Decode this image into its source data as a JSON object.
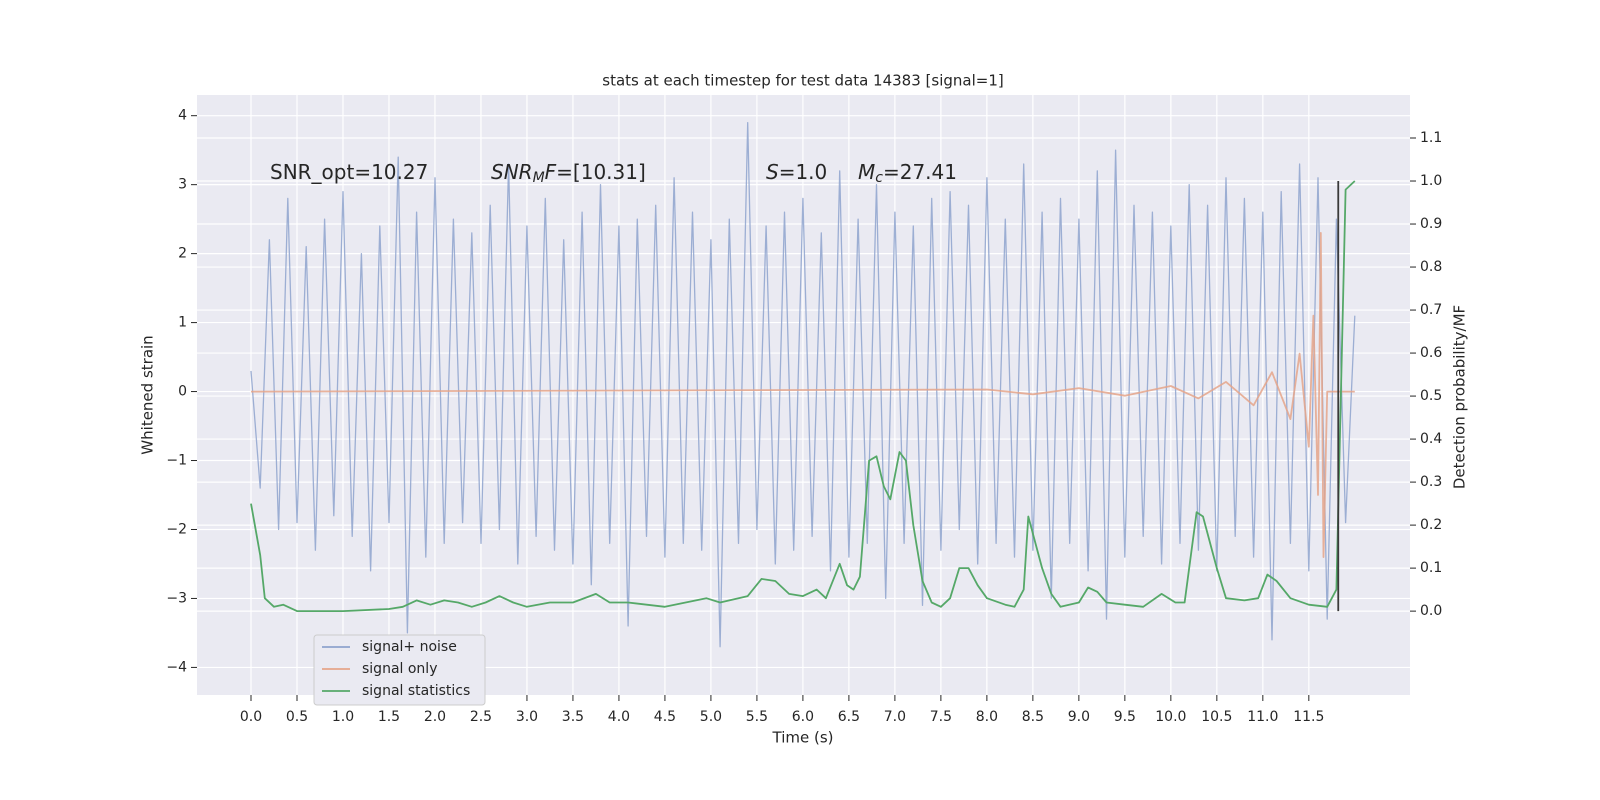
{
  "chart_data": {
    "type": "line",
    "title": "stats at each timestep for test data 14383 [signal=1]",
    "xlabel": "Time (s)",
    "ylabel": "Whitened strain",
    "y2label": "Detection probability/MF",
    "xlim": [
      -0.587,
      12.6
    ],
    "ylim": [
      -4.4,
      4.3
    ],
    "y2lim": [
      -0.195,
      1.2
    ],
    "xticks": [
      {
        "value": 0,
        "label": "0.0"
      },
      0.5,
      {
        "value": 1,
        "label": "1.0"
      },
      1.5,
      {
        "value": 2,
        "label": "2.0"
      },
      2.5,
      {
        "value": 3,
        "label": "3.0"
      },
      3.5,
      {
        "value": 4,
        "label": "4.0"
      },
      4.5,
      {
        "value": 5,
        "label": "5.0"
      },
      5.5,
      {
        "value": 6,
        "label": "6.0"
      },
      6.5,
      {
        "value": 7,
        "label": "7.0"
      },
      7.5,
      {
        "value": 8,
        "label": "8.0"
      },
      8.5,
      {
        "value": 9,
        "label": "9.0"
      },
      9.5,
      {
        "value": 10,
        "label": "10.0"
      },
      10.5,
      {
        "value": 11,
        "label": "11.0"
      },
      11.5
    ],
    "yticks": [
      {
        "value": -4,
        "label": "−4"
      },
      {
        "value": -3,
        "label": "−3"
      },
      {
        "value": -2,
        "label": "−2"
      },
      {
        "value": -1,
        "label": "−1"
      },
      0,
      1,
      2,
      3,
      4
    ],
    "y2ticks": [
      {
        "value": 0,
        "label": "0.0"
      },
      0.1,
      0.2,
      0.3,
      0.4,
      0.5,
      0.6,
      0.7,
      0.8,
      0.9,
      {
        "value": 1,
        "label": "1.0"
      },
      1.1
    ],
    "grid": true,
    "legend": "lower left",
    "annotations": [
      {
        "segments": [
          {
            "text": "SNR_opt=10.27",
            "style": "normal"
          }
        ]
      },
      {
        "segments": [
          {
            "text": "SNR",
            "style": "italic"
          },
          {
            "text": "M",
            "style": "italic-sub"
          },
          {
            "text": "F",
            "style": "italic"
          },
          {
            "text": "=[10.31]",
            "style": "normal"
          }
        ]
      },
      {
        "segments": [
          {
            "text": "S",
            "style": "italic"
          },
          {
            "text": "=1.0",
            "style": "normal"
          }
        ]
      },
      {
        "segments": [
          {
            "text": "M",
            "style": "italic"
          },
          {
            "text": "c",
            "style": "italic-sub"
          },
          {
            "text": "=27.41",
            "style": "normal"
          }
        ]
      }
    ],
    "vlines": [
      {
        "x": 11.82,
        "ymin": 0,
        "ymax": 1,
        "axis": "y2",
        "color": "#3a3a3a"
      }
    ],
    "series": [
      {
        "name": "signal+ noise",
        "color": "#8ea3ce",
        "x": [
          0,
          0.1,
          0.2,
          0.3,
          0.4,
          0.5,
          0.6,
          0.7,
          0.8,
          0.9,
          1.0,
          1.1,
          1.2,
          1.3,
          1.4,
          1.5,
          1.6,
          1.7,
          1.8,
          1.9,
          2.0,
          2.1,
          2.2,
          2.3,
          2.4,
          2.5,
          2.6,
          2.7,
          2.8,
          2.9,
          3.0,
          3.1,
          3.2,
          3.3,
          3.4,
          3.5,
          3.6,
          3.7,
          3.8,
          3.9,
          4.0,
          4.1,
          4.2,
          4.3,
          4.4,
          4.5,
          4.6,
          4.7,
          4.8,
          4.9,
          5.0,
          5.1,
          5.2,
          5.3,
          5.4,
          5.5,
          5.6,
          5.7,
          5.8,
          5.9,
          6.0,
          6.1,
          6.2,
          6.3,
          6.4,
          6.5,
          6.6,
          6.7,
          6.8,
          6.9,
          7.0,
          7.1,
          7.2,
          7.3,
          7.4,
          7.5,
          7.6,
          7.7,
          7.8,
          7.9,
          8.0,
          8.1,
          8.2,
          8.3,
          8.4,
          8.5,
          8.6,
          8.7,
          8.8,
          8.9,
          9.0,
          9.1,
          9.2,
          9.3,
          9.4,
          9.5,
          9.6,
          9.7,
          9.8,
          9.9,
          10.0,
          10.1,
          10.2,
          10.3,
          10.4,
          10.5,
          10.6,
          10.7,
          10.8,
          10.9,
          11.0,
          11.1,
          11.2,
          11.3,
          11.4,
          11.5,
          11.6,
          11.7,
          11.8,
          11.9,
          12.0
        ],
        "values": [
          0.3,
          -1.4,
          2.2,
          -2.0,
          2.8,
          -1.9,
          2.1,
          -2.3,
          2.5,
          -1.8,
          2.9,
          -2.1,
          2.0,
          -2.6,
          2.4,
          -1.9,
          3.4,
          -3.5,
          2.6,
          -2.4,
          3.1,
          -2.2,
          2.5,
          -1.9,
          2.3,
          -2.2,
          2.7,
          -2.0,
          3.3,
          -2.5,
          2.4,
          -2.1,
          2.8,
          -2.3,
          2.2,
          -2.5,
          2.6,
          -2.8,
          3.0,
          -2.2,
          2.4,
          -3.4,
          2.5,
          -2.1,
          2.7,
          -2.4,
          3.1,
          -2.2,
          2.6,
          -2.3,
          2.2,
          -3.7,
          2.5,
          -2.2,
          3.9,
          -2.0,
          2.4,
          -2.5,
          2.6,
          -2.3,
          2.8,
          -2.1,
          2.3,
          -2.6,
          3.2,
          -2.4,
          2.5,
          -2.2,
          3.0,
          -3.0,
          2.6,
          -2.2,
          2.4,
          -3.1,
          2.8,
          -2.3,
          2.9,
          -2.0,
          2.7,
          -2.5,
          3.1,
          -2.2,
          2.5,
          -2.4,
          3.3,
          -2.3,
          2.6,
          -3.0,
          2.8,
          -2.2,
          2.5,
          -2.6,
          3.2,
          -3.3,
          3.5,
          -2.4,
          2.7,
          -2.1,
          2.6,
          -2.5,
          2.4,
          -2.2,
          3.0,
          -2.3,
          2.7,
          -2.6,
          3.1,
          -2.1,
          2.8,
          -2.4,
          2.6,
          -3.6,
          2.9,
          -2.2,
          3.3,
          -2.6,
          3.1,
          -3.3,
          2.5,
          -1.9,
          1.1
        ]
      },
      {
        "name": "signal only",
        "color": "#e5a58a",
        "x": [
          0,
          8.0,
          8.5,
          9.0,
          9.5,
          10.0,
          10.3,
          10.6,
          10.9,
          11.1,
          11.3,
          11.4,
          11.5,
          11.55,
          11.6,
          11.63,
          11.66,
          11.7,
          12.0
        ],
        "values": [
          0,
          0.03,
          -0.04,
          0.05,
          -0.06,
          0.08,
          -0.1,
          0.14,
          -0.2,
          0.28,
          -0.4,
          0.55,
          -0.8,
          1.1,
          -1.5,
          2.3,
          -2.4,
          0,
          0
        ]
      },
      {
        "name": "signal statistics",
        "color": "#55a868",
        "axis": "y2",
        "x": [
          0,
          0.1,
          0.15,
          0.25,
          0.35,
          0.5,
          1.0,
          1.5,
          1.65,
          1.8,
          1.95,
          2.1,
          2.25,
          2.4,
          2.55,
          2.7,
          2.85,
          3.0,
          3.25,
          3.5,
          3.75,
          3.9,
          4.1,
          4.5,
          4.95,
          5.1,
          5.4,
          5.55,
          5.7,
          5.85,
          6.0,
          6.15,
          6.25,
          6.4,
          6.48,
          6.55,
          6.62,
          6.72,
          6.8,
          6.88,
          6.95,
          7.05,
          7.12,
          7.2,
          7.3,
          7.4,
          7.5,
          7.6,
          7.7,
          7.8,
          7.9,
          8.0,
          8.2,
          8.3,
          8.4,
          8.45,
          8.6,
          8.7,
          8.8,
          9.0,
          9.1,
          9.2,
          9.3,
          9.5,
          9.7,
          9.9,
          10.05,
          10.15,
          10.28,
          10.35,
          10.5,
          10.6,
          10.8,
          10.95,
          11.05,
          11.15,
          11.3,
          11.5,
          11.7,
          11.8,
          11.9,
          12.0
        ],
        "values": [
          0.25,
          0.13,
          0.03,
          0.01,
          0.015,
          0,
          0,
          0.005,
          0.01,
          0.025,
          0.015,
          0.025,
          0.02,
          0.01,
          0.02,
          0.035,
          0.02,
          0.01,
          0.02,
          0.02,
          0.04,
          0.02,
          0.02,
          0.01,
          0.03,
          0.02,
          0.035,
          0.075,
          0.07,
          0.04,
          0.035,
          0.05,
          0.03,
          0.11,
          0.06,
          0.05,
          0.08,
          0.35,
          0.36,
          0.29,
          0.26,
          0.37,
          0.35,
          0.2,
          0.07,
          0.02,
          0.01,
          0.03,
          0.1,
          0.1,
          0.06,
          0.03,
          0.015,
          0.01,
          0.05,
          0.22,
          0.1,
          0.04,
          0.01,
          0.02,
          0.055,
          0.045,
          0.02,
          0.015,
          0.01,
          0.04,
          0.02,
          0.02,
          0.23,
          0.22,
          0.1,
          0.03,
          0.025,
          0.03,
          0.085,
          0.07,
          0.03,
          0.015,
          0.01,
          0.05,
          0.98,
          1.0
        ]
      }
    ]
  }
}
